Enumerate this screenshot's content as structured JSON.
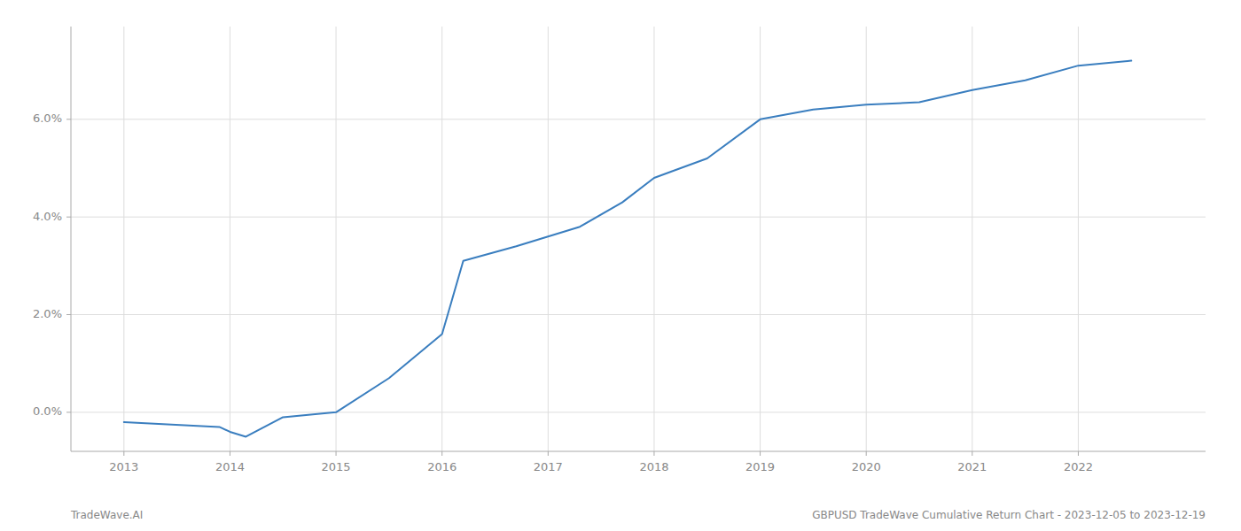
{
  "chart_data": {
    "type": "line",
    "x": [
      2013,
      2013.9,
      2014,
      2014.15,
      2014.5,
      2015.0,
      2015.5,
      2016.0,
      2016.2,
      2016.7,
      2017.0,
      2017.3,
      2017.7,
      2018.0,
      2018.5,
      2019.0,
      2019.5,
      2020.0,
      2020.5,
      2021.0,
      2021.5,
      2022.0,
      2022.5
    ],
    "values": [
      -0.002,
      -0.003,
      -0.004,
      -0.005,
      -0.001,
      0.0,
      0.007,
      0.016,
      0.031,
      0.034,
      0.036,
      0.038,
      0.043,
      0.048,
      0.052,
      0.06,
      0.062,
      0.063,
      0.0635,
      0.066,
      0.068,
      0.071,
      0.072
    ],
    "color": "#3a7ebf",
    "xlim": [
      2012.5,
      2023.2
    ],
    "ylim": [
      -0.008,
      0.079
    ],
    "xticks": [
      2013,
      2014,
      2015,
      2016,
      2017,
      2018,
      2019,
      2020,
      2021,
      2022
    ],
    "yticks": [
      {
        "value": 0.0,
        "label": "0.0%"
      },
      {
        "value": 0.02,
        "label": "2.0%"
      },
      {
        "value": 0.04,
        "label": "4.0%"
      },
      {
        "value": 0.06,
        "label": "6.0%"
      }
    ],
    "grid": true,
    "annotations": [
      "TradeWave.AI",
      "GBPUSD TradeWave Cumulative Return Chart - 2023-12-05 to 2023-12-19"
    ]
  }
}
